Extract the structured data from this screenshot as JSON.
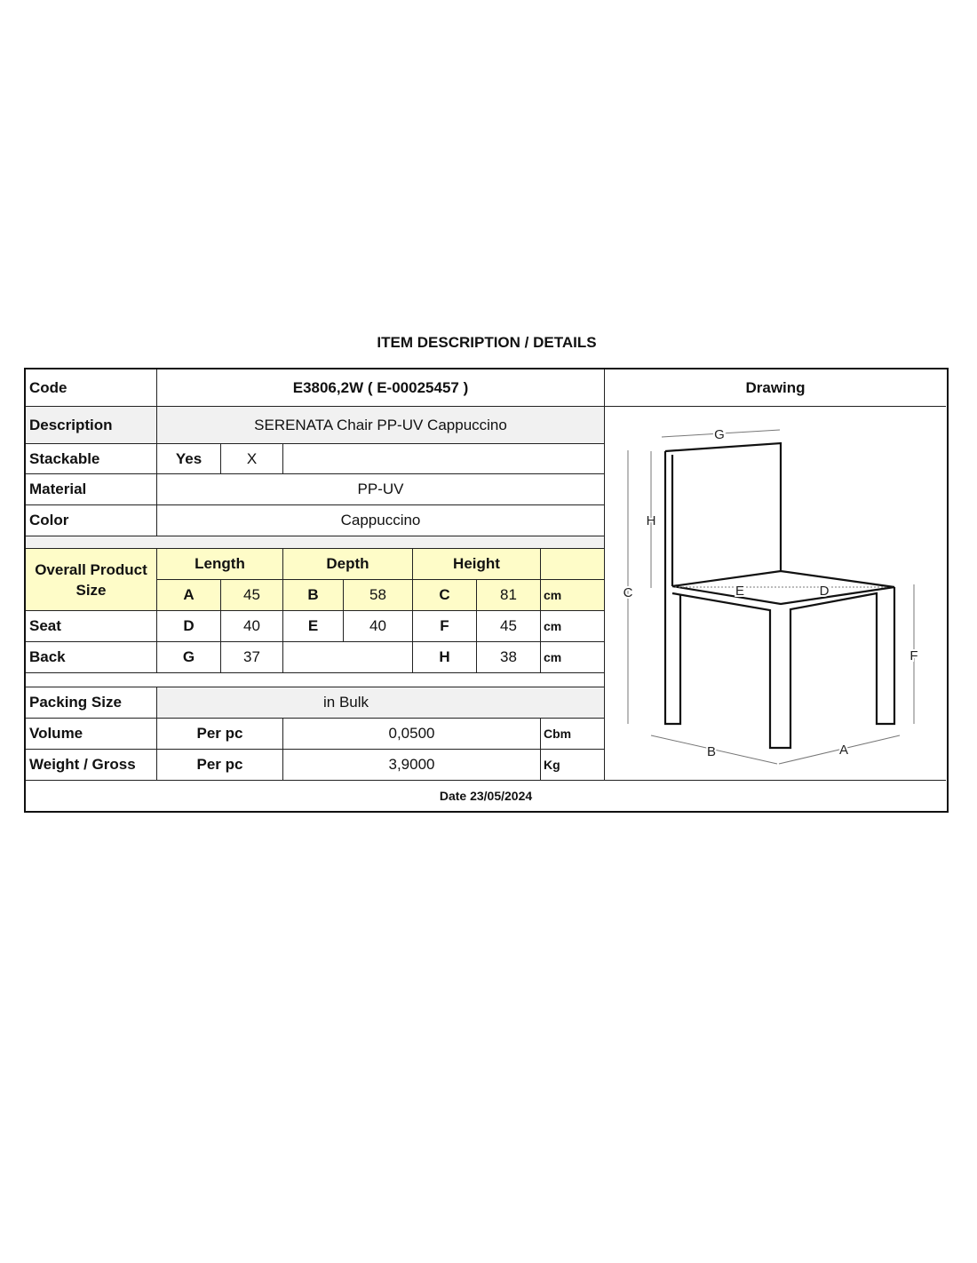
{
  "title": "ITEM DESCRIPTION / DETAILS",
  "code": {
    "label": "Code",
    "value": "E3806,2W  ( E-00025457 )"
  },
  "description": {
    "label": "Description",
    "value": "SERENATA Chair PP-UV Cappuccino"
  },
  "stackable": {
    "label": "Stackable",
    "option": "Yes",
    "mark": "X"
  },
  "material": {
    "label": "Material",
    "value": "PP-UV"
  },
  "color": {
    "label": "Color",
    "value": "Cappuccino"
  },
  "drawing": {
    "label": "Drawing",
    "dimension_labels": [
      "G",
      "H",
      "C",
      "E",
      "D",
      "F",
      "B",
      "A"
    ]
  },
  "overall": {
    "label": "Overall Product Size",
    "headers": [
      "Length",
      "Depth",
      "Height"
    ],
    "row": [
      {
        "key": "A",
        "value": "45"
      },
      {
        "key": "B",
        "value": "58"
      },
      {
        "key": "C",
        "value": "81"
      }
    ],
    "unit": "cm"
  },
  "seat": {
    "label": "Seat",
    "row": [
      {
        "key": "D",
        "value": "40"
      },
      {
        "key": "E",
        "value": "40"
      },
      {
        "key": "F",
        "value": "45"
      }
    ],
    "unit": "cm"
  },
  "back": {
    "label": "Back",
    "row": [
      {
        "key": "G",
        "value": "37"
      },
      {
        "key": "H",
        "value": "38"
      }
    ],
    "unit": "cm"
  },
  "packing": {
    "label": "Packing Size",
    "value": "in Bulk"
  },
  "volume": {
    "label": "Volume",
    "per": "Per pc",
    "value": "0,0500",
    "unit": "Cbm"
  },
  "weight": {
    "label": "Weight / Gross",
    "per": "Per pc",
    "value": "3,9000",
    "unit": "Kg"
  },
  "date": "Date 23/05/2024",
  "colors": {
    "highlight": "#fefcc8",
    "shaded": "#f1f1f1"
  }
}
